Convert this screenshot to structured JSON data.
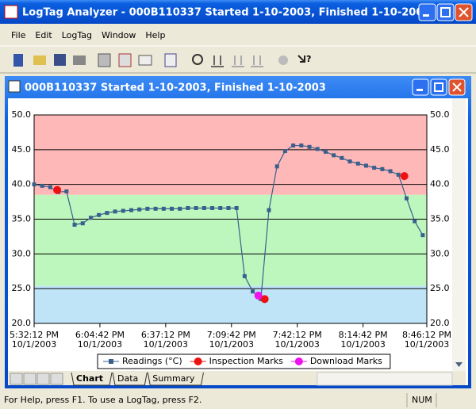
{
  "window": {
    "title": "LogTag Analyzer - 000B110337 Started 1-10-2003, Finished 1-10-2003"
  },
  "menu": [
    "File",
    "Edit",
    "LogTag",
    "Window",
    "Help"
  ],
  "child_window": {
    "title": "000B110337 Started 1-10-2003, Finished 1-10-2003"
  },
  "chart_data": {
    "type": "line",
    "xlim": [
      "5:32:12 PM",
      "8:46:12 PM"
    ],
    "xticks": [
      "5:32:12 PM",
      "6:04:42 PM",
      "6:37:12 PM",
      "7:09:42 PM",
      "7:42:12 PM",
      "8:14:42 PM",
      "8:46:12 PM"
    ],
    "xtick_date": "10/1/2003",
    "ylim": [
      20,
      50
    ],
    "yticks": [
      {
        "value": 20,
        "label": "20.0"
      },
      {
        "value": 25,
        "label": "25.0"
      },
      {
        "value": 30,
        "label": "30.0"
      },
      {
        "value": 35,
        "label": "35.0"
      },
      {
        "value": 40,
        "label": "40.0"
      },
      {
        "value": 45,
        "label": "45.0"
      },
      {
        "value": 50,
        "label": "50.0"
      }
    ],
    "grid": true,
    "legend": "bottom",
    "bands": [
      {
        "from": 38.5,
        "to": 50,
        "color": "#ffb8b8"
      },
      {
        "from": 25.4,
        "to": 38.5,
        "color": "#bdf7bd"
      },
      {
        "from": 20,
        "to": 25.4,
        "color": "#bfe4f8"
      }
    ],
    "series": [
      {
        "name": "Readings (°C)",
        "color": "#3a5f8c",
        "mode": "line",
        "x": [
          "5:32:12 PM",
          "5:36:12 PM",
          "5:40:12 PM",
          "5:44:12 PM",
          "5:48:12 PM",
          "5:52:12 PM",
          "5:56:12 PM",
          "6:00:12 PM",
          "6:04:12 PM",
          "6:08:12 PM",
          "6:12:12 PM",
          "6:16:12 PM",
          "6:20:12 PM",
          "6:24:12 PM",
          "6:28:12 PM",
          "6:32:12 PM",
          "6:36:12 PM",
          "6:40:12 PM",
          "6:44:12 PM",
          "6:48:12 PM",
          "6:52:12 PM",
          "6:56:12 PM",
          "7:00:12 PM",
          "7:04:12 PM",
          "7:08:12 PM",
          "7:12:12 PM",
          "7:16:12 PM",
          "7:20:12 PM",
          "7:24:12 PM",
          "7:28:12 PM",
          "7:32:12 PM",
          "7:36:12 PM",
          "7:40:12 PM",
          "7:44:12 PM",
          "7:48:12 PM",
          "7:52:12 PM",
          "7:56:12 PM",
          "8:00:12 PM",
          "8:04:12 PM",
          "8:08:12 PM",
          "8:12:12 PM",
          "8:16:12 PM",
          "8:20:12 PM",
          "8:24:12 PM",
          "8:28:12 PM",
          "8:32:12 PM",
          "8:36:12 PM",
          "8:40:12 PM",
          "8:44:12 PM"
        ],
        "values": [
          40.0,
          39.8,
          39.6,
          38.9,
          39.0,
          34.2,
          34.4,
          35.2,
          35.6,
          35.9,
          36.1,
          36.2,
          36.3,
          36.4,
          36.5,
          36.5,
          36.5,
          36.5,
          36.5,
          36.6,
          36.6,
          36.6,
          36.6,
          36.6,
          36.6,
          36.6,
          26.8,
          24.6,
          23.5,
          36.3,
          42.6,
          44.8,
          45.6,
          45.6,
          45.4,
          45.1,
          44.7,
          44.2,
          43.8,
          43.3,
          43.0,
          42.7,
          42.4,
          42.2,
          41.9,
          41.4,
          38.0,
          34.7,
          32.7
        ]
      },
      {
        "name": "Inspection Marks",
        "color": "#ee1111",
        "mode": "points",
        "x": [
          "5:43:36 PM",
          "7:26:06 PM",
          "8:35:06 PM"
        ],
        "values": [
          39.2,
          23.5,
          41.2
        ]
      },
      {
        "name": "Download Marks",
        "color": "#ee11ee",
        "mode": "points",
        "x": [
          "7:23:00 PM"
        ],
        "values": [
          24.0
        ]
      }
    ]
  },
  "tabs": [
    "Chart",
    "Data",
    "Summary"
  ],
  "status_bar": {
    "message": "For Help, press F1. To use a LogTag, press F2.",
    "indicator": "NUM"
  }
}
